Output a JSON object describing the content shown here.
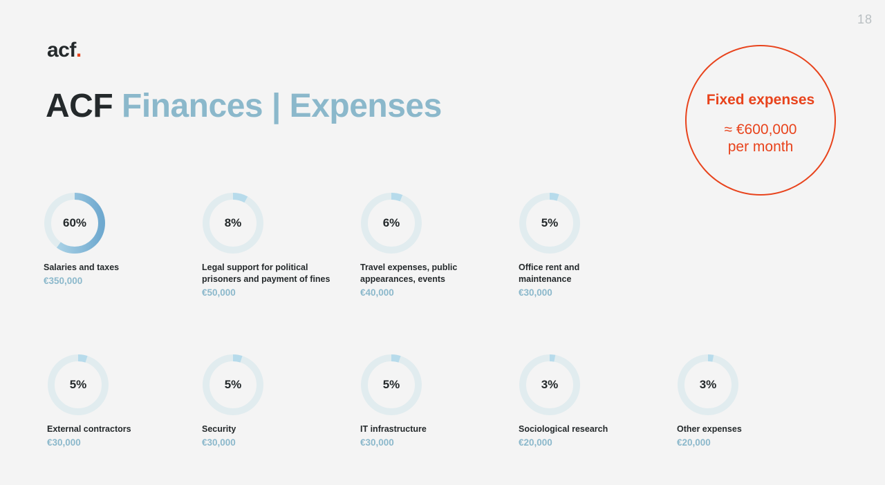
{
  "page_number": "18",
  "logo": {
    "text": "acf",
    "dot": "."
  },
  "title": {
    "part1": "ACF",
    "part2": "Finances | Expenses"
  },
  "fixed": {
    "title": "Fixed expenses",
    "amount": "≈ €600,000",
    "period": "per month"
  },
  "colors": {
    "accent": "#e8431c",
    "light_blue": "#8bb8cb",
    "ring_track": "#e1ecef",
    "ring_fill_light": "#b7dbeb",
    "ring_fill_dark": "#6fa9cf",
    "text_dark": "#24292b"
  },
  "chart_data": {
    "type": "donut",
    "items": [
      {
        "percent_label": "60%",
        "value": 60,
        "label_lines": [
          "Salaries and taxes"
        ],
        "amount": "€350,000"
      },
      {
        "percent_label": "8%",
        "value": 8,
        "label_lines": [
          "Legal support for political",
          "prisoners and payment of fines"
        ],
        "amount": "€50,000"
      },
      {
        "percent_label": "6%",
        "value": 6,
        "label_lines": [
          "Travel expenses, public",
          "appearances, events"
        ],
        "amount": "€40,000"
      },
      {
        "percent_label": "5%",
        "value": 5,
        "label_lines": [
          "Office rent and",
          "maintenance"
        ],
        "amount": "€30,000"
      },
      {
        "percent_label": "5%",
        "value": 5,
        "label_lines": [
          "External contractors"
        ],
        "amount": "€30,000"
      },
      {
        "percent_label": "5%",
        "value": 5,
        "label_lines": [
          "Security"
        ],
        "amount": "€30,000"
      },
      {
        "percent_label": "5%",
        "value": 5,
        "label_lines": [
          "IT infrastructure"
        ],
        "amount": "€30,000"
      },
      {
        "percent_label": "3%",
        "value": 3,
        "label_lines": [
          "Sociological research"
        ],
        "amount": "€20,000"
      },
      {
        "percent_label": "3%",
        "value": 3,
        "label_lines": [
          "Other expenses"
        ],
        "amount": "€20,000"
      }
    ]
  }
}
